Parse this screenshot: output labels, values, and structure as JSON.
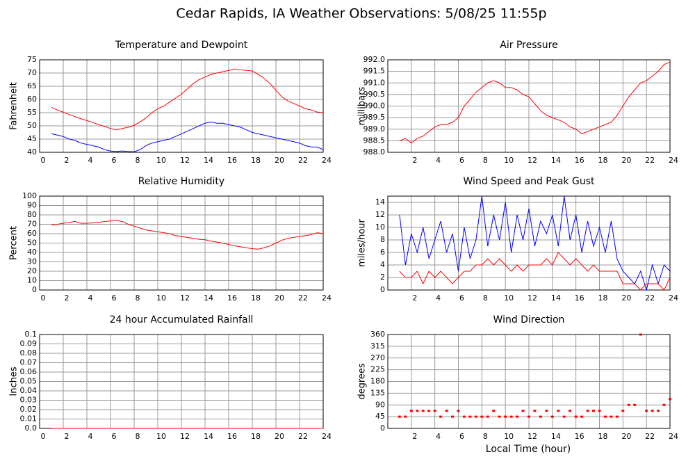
{
  "title": "Cedar Rapids, IA Weather Observations: 5/08/25 11:55p",
  "x_label": "Local Time (hour)",
  "chart_data": [
    {
      "type": "line",
      "title": "Temperature and Dewpoint",
      "y_label": "Fahrenheit",
      "x": [
        1,
        1.5,
        2,
        2.5,
        3,
        3.5,
        4,
        4.5,
        5,
        5.5,
        6,
        6.5,
        7,
        7.5,
        8,
        8.5,
        9,
        9.5,
        10,
        10.5,
        11,
        11.5,
        12,
        12.5,
        13,
        13.5,
        14,
        14.5,
        15,
        15.5,
        16,
        16.5,
        17,
        17.5,
        18,
        18.5,
        19,
        19.5,
        20,
        20.5,
        21,
        21.5,
        22,
        22.5,
        23,
        23.5,
        24
      ],
      "series": [
        {
          "color": "#ff0000",
          "values": [
            57,
            56,
            55.2,
            54.3,
            53.5,
            52.7,
            52,
            51.3,
            50.5,
            49.8,
            49,
            48.5,
            49,
            49.5,
            50.2,
            51.5,
            53,
            55,
            56.5,
            57.5,
            59,
            60.5,
            62,
            64,
            66,
            67.5,
            68.5,
            69.5,
            70,
            70.5,
            71,
            71.5,
            71.2,
            71,
            70.8,
            69.5,
            68,
            66,
            63.5,
            61,
            59.5,
            58.5,
            57.5,
            56.5,
            56,
            55.2,
            55
          ]
        },
        {
          "color": "#0000ff",
          "values": [
            47,
            46.5,
            46,
            45,
            44.5,
            43.5,
            43,
            42.5,
            42,
            41,
            40.5,
            40.3,
            40.5,
            40.3,
            40.2,
            41,
            42.5,
            43.5,
            44,
            44.5,
            45,
            46,
            47,
            48,
            49,
            50,
            51,
            51.5,
            51,
            51,
            50.5,
            50,
            49.5,
            48.5,
            47.5,
            47,
            46.5,
            46,
            45.5,
            45,
            44.5,
            44,
            43.5,
            42.5,
            42,
            42,
            41
          ]
        }
      ],
      "xlim": [
        0,
        24
      ],
      "xticks": [
        0,
        2,
        4,
        6,
        8,
        10,
        12,
        14,
        16,
        18,
        20,
        22,
        24
      ],
      "ylim": [
        40,
        75
      ],
      "yticks": [
        40,
        45,
        50,
        55,
        60,
        65,
        70,
        75
      ],
      "grid": true
    },
    {
      "type": "line",
      "title": "Air Pressure",
      "y_label": "millibars",
      "x": [
        1,
        1.5,
        2,
        2.5,
        3,
        3.5,
        4,
        4.5,
        5,
        5.5,
        6,
        6.5,
        7,
        7.5,
        8,
        8.5,
        9,
        9.5,
        10,
        10.5,
        11,
        11.5,
        12,
        12.5,
        13,
        13.5,
        14,
        14.5,
        15,
        15.5,
        16,
        16.5,
        17,
        17.5,
        18,
        18.5,
        19,
        19.5,
        20,
        20.5,
        21,
        21.5,
        22,
        22.5,
        23,
        23.5,
        24
      ],
      "series": [
        {
          "color": "#ff0000",
          "values": [
            988.5,
            988.6,
            988.4,
            988.6,
            988.7,
            988.9,
            989.1,
            989.2,
            989.2,
            989.3,
            989.5,
            990.0,
            990.3,
            990.6,
            990.8,
            991.0,
            991.1,
            991.0,
            990.8,
            990.8,
            990.7,
            990.5,
            990.4,
            990.1,
            989.8,
            989.6,
            989.5,
            989.4,
            989.3,
            989.1,
            989.0,
            988.8,
            988.9,
            989.0,
            989.1,
            989.2,
            989.3,
            989.6,
            990.0,
            990.4,
            990.7,
            991.0,
            991.1,
            991.3,
            991.5,
            991.8,
            991.9
          ]
        }
      ],
      "xlim": [
        0,
        24
      ],
      "xticks": [
        2,
        4,
        6,
        8,
        10,
        12,
        14,
        16,
        18,
        20,
        22,
        24
      ],
      "ylim": [
        988,
        992
      ],
      "yticks": [
        {
          "value": 988,
          "label": "988.0"
        },
        988.5,
        {
          "value": 989,
          "label": "989.0"
        },
        989.5,
        {
          "value": 990,
          "label": "990.0"
        },
        990.5,
        {
          "value": 991,
          "label": "991.0"
        },
        991.5,
        {
          "value": 992,
          "label": "992.0"
        }
      ],
      "grid": true
    },
    {
      "type": "line",
      "title": "Relative Humidity",
      "y_label": "Percent",
      "x": [
        1,
        1.5,
        2,
        2.5,
        3,
        3.5,
        4,
        4.5,
        5,
        5.5,
        6,
        6.5,
        7,
        7.5,
        8,
        8.5,
        9,
        9.5,
        10,
        10.5,
        11,
        11.5,
        12,
        12.5,
        13,
        13.5,
        14,
        14.5,
        15,
        15.5,
        16,
        16.5,
        17,
        17.5,
        18,
        18.5,
        19,
        19.5,
        20,
        20.5,
        21,
        21.5,
        22,
        22.5,
        23,
        23.5,
        24
      ],
      "series": [
        {
          "color": "#ff0000",
          "values": [
            69,
            70,
            71,
            72,
            73,
            71,
            71,
            71.5,
            72,
            73,
            73.5,
            74,
            73,
            70,
            68,
            66,
            64,
            63,
            62,
            61,
            60,
            58,
            57,
            56,
            55,
            54,
            53.5,
            52,
            51,
            50,
            48.5,
            47,
            46,
            45,
            44,
            43.5,
            45,
            47,
            50,
            53,
            55,
            56,
            57,
            58,
            59,
            61,
            60
          ]
        }
      ],
      "xlim": [
        0,
        24
      ],
      "xticks": [
        0,
        2,
        4,
        6,
        8,
        10,
        12,
        14,
        16,
        18,
        20,
        22,
        24
      ],
      "ylim": [
        0,
        100
      ],
      "yticks": [
        0,
        10,
        20,
        30,
        40,
        50,
        60,
        70,
        80,
        90,
        100
      ],
      "grid": true
    },
    {
      "type": "line",
      "title": "Wind Speed and Peak Gust",
      "y_label": "miles/hour",
      "x": [
        1,
        1.5,
        2,
        2.5,
        3,
        3.5,
        4,
        4.5,
        5,
        5.5,
        6,
        6.5,
        7,
        7.5,
        8,
        8.5,
        9,
        9.5,
        10,
        10.5,
        11,
        11.5,
        12,
        12.5,
        13,
        13.5,
        14,
        14.5,
        15,
        15.5,
        16,
        16.5,
        17,
        17.5,
        18,
        18.5,
        19,
        19.5,
        20,
        20.5,
        21,
        21.5,
        22,
        22.5,
        23,
        23.5,
        24
      ],
      "series": [
        {
          "color": "#0000ff",
          "values": [
            12,
            4,
            9,
            6,
            10,
            5,
            8,
            11,
            6,
            9,
            3,
            10,
            5,
            8,
            15,
            7,
            12,
            8,
            14,
            6,
            12,
            8,
            13,
            7,
            11,
            9,
            12,
            7,
            15,
            8,
            12,
            6,
            11,
            7,
            10,
            6,
            11,
            5,
            3,
            2,
            1,
            3,
            0,
            4,
            1,
            4,
            3
          ]
        },
        {
          "color": "#ff0000",
          "values": [
            3,
            2,
            2,
            3,
            1,
            3,
            2,
            3,
            2,
            1,
            2,
            3,
            3,
            4,
            4,
            5,
            4,
            5,
            4,
            3,
            4,
            3,
            4,
            4,
            4,
            5,
            4,
            6,
            5,
            4,
            5,
            4,
            3,
            4,
            3,
            3,
            3,
            3,
            1,
            1,
            1,
            0,
            1,
            1,
            1,
            0,
            2
          ]
        }
      ],
      "xlim": [
        0,
        24
      ],
      "xticks": [
        2,
        4,
        6,
        8,
        10,
        12,
        14,
        16,
        18,
        20,
        22,
        24
      ],
      "ylim": [
        0,
        15
      ],
      "yticks": [
        0,
        2,
        4,
        6,
        8,
        10,
        12,
        14
      ],
      "grid": true
    },
    {
      "type": "line",
      "title": "24 hour Accumulated Rainfall",
      "y_label": "Inches",
      "x": [
        1,
        24
      ],
      "series": [
        {
          "color": "#ff0000",
          "values": [
            0,
            0
          ]
        }
      ],
      "xlim": [
        0,
        24
      ],
      "xticks": [
        0,
        2,
        4,
        6,
        8,
        10,
        12,
        14,
        16,
        18,
        20,
        22,
        24
      ],
      "ylim": [
        0,
        0.1
      ],
      "yticks": [
        {
          "value": 0,
          "label": "0.0"
        },
        0.01,
        0.02,
        0.03,
        0.04,
        0.05,
        0.06,
        0.07,
        0.08,
        0.09,
        0.1
      ],
      "grid": true
    },
    {
      "type": "scatter",
      "title": "Wind Direction",
      "y_label": "degrees",
      "x": [
        1,
        1.5,
        2,
        2.5,
        3,
        3.5,
        4,
        4.5,
        5,
        5.5,
        6,
        6.5,
        7,
        7.5,
        8,
        8.5,
        9,
        9.5,
        10,
        10.5,
        11,
        11.5,
        12,
        12.5,
        13,
        13.5,
        14,
        14.5,
        15,
        15.5,
        16,
        16.5,
        17,
        17.5,
        18,
        18.5,
        19,
        19.5,
        20,
        20.5,
        21,
        21.5,
        22,
        22.5,
        23,
        23.5,
        24
      ],
      "series": [
        {
          "color": "#ff0000",
          "values": [
            45,
            45,
            67.5,
            67.5,
            67.5,
            67.5,
            67.5,
            45,
            67.5,
            45,
            67.5,
            45,
            45,
            45,
            45,
            45,
            67.5,
            45,
            45,
            45,
            45,
            67.5,
            45,
            67.5,
            45,
            67.5,
            45,
            67.5,
            45,
            67.5,
            45,
            45,
            67.5,
            67.5,
            67.5,
            45,
            45,
            45,
            67.5,
            90,
            90,
            360,
            67.5,
            67.5,
            67.5,
            90,
            112.5
          ]
        }
      ],
      "xlim": [
        0,
        24
      ],
      "xticks": [
        2,
        4,
        6,
        8,
        10,
        12,
        14,
        16,
        18,
        20,
        22,
        24
      ],
      "ylim": [
        0,
        360
      ],
      "yticks": [
        0,
        45,
        90,
        135,
        180,
        225,
        270,
        315,
        360
      ],
      "grid": true
    }
  ]
}
